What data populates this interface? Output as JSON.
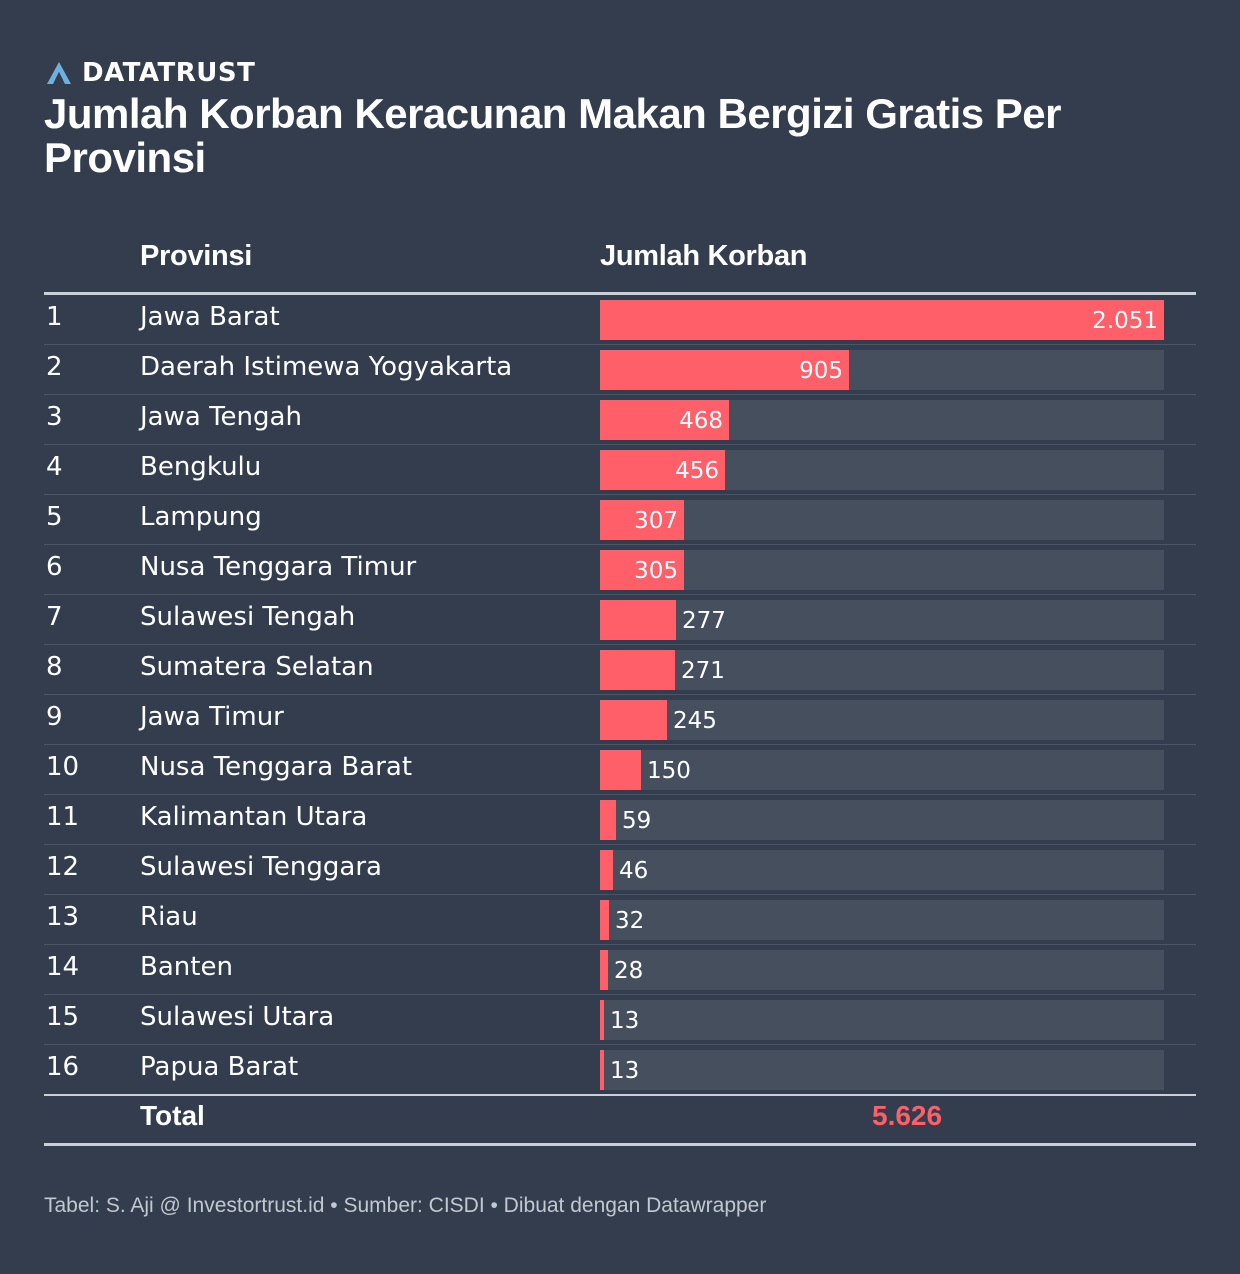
{
  "brand": {
    "name": "DATATRUST",
    "logo_icon": "datatrust-a-logo-icon"
  },
  "title": "Jumlah Korban Keracunan Makan Bergizi Gratis Per Provinsi",
  "colors": {
    "background": "#333d4d",
    "bar": "#fe5f68",
    "track": "#464f5e",
    "text": "#ffffff"
  },
  "chart_data": {
    "type": "table",
    "columns": [
      "Provinsi",
      "Jumlah Korban"
    ],
    "rows": [
      {
        "rank": "1",
        "province": "Jawa Barat",
        "value": 2051,
        "label": "2.051"
      },
      {
        "rank": "2",
        "province": "Daerah Istimewa Yogyakarta",
        "value": 905,
        "label": "905"
      },
      {
        "rank": "3",
        "province": "Jawa Tengah",
        "value": 468,
        "label": "468"
      },
      {
        "rank": "4",
        "province": "Bengkulu",
        "value": 456,
        "label": "456"
      },
      {
        "rank": "5",
        "province": "Lampung",
        "value": 307,
        "label": "307"
      },
      {
        "rank": "6",
        "province": "Nusa Tenggara Timur",
        "value": 305,
        "label": "305"
      },
      {
        "rank": "7",
        "province": "Sulawesi Tengah",
        "value": 277,
        "label": "277"
      },
      {
        "rank": "8",
        "province": "Sumatera Selatan",
        "value": 271,
        "label": "271"
      },
      {
        "rank": "9",
        "province": "Jawa Timur",
        "value": 245,
        "label": "245"
      },
      {
        "rank": "10",
        "province": "Nusa Tenggara Barat",
        "value": 150,
        "label": "150"
      },
      {
        "rank": "11",
        "province": "Kalimantan Utara",
        "value": 59,
        "label": "59"
      },
      {
        "rank": "12",
        "province": "Sulawesi Tenggara",
        "value": 46,
        "label": "46"
      },
      {
        "rank": "13",
        "province": "Riau",
        "value": 32,
        "label": "32"
      },
      {
        "rank": "14",
        "province": "Banten",
        "value": 28,
        "label": "28"
      },
      {
        "rank": "15",
        "province": "Sulawesi Utara",
        "value": 13,
        "label": "13"
      },
      {
        "rank": "16",
        "province": "Papua Barat",
        "value": 13,
        "label": "13"
      }
    ],
    "total_label": "Total",
    "total_value": "5.626",
    "max_value": 2051
  },
  "footer": "Tabel: S. Aji @ Investortrust.id • Sumber: CISDI • Dibuat dengan Datawrapper"
}
